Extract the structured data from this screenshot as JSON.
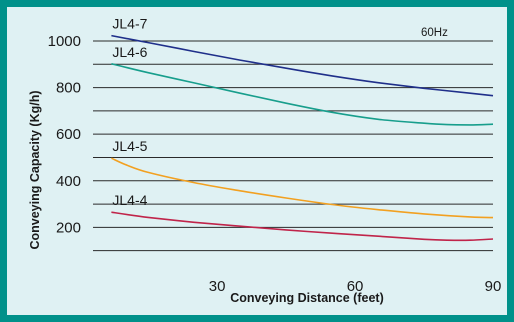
{
  "chart_data": {
    "type": "line",
    "title": "",
    "xlabel": "Conveying Distance (feet)",
    "ylabel": "Conveying Capacity (Kg/h)",
    "annotation": "60Hz",
    "xlim": [
      3,
      90
    ],
    "ylim": [
      60,
      1090
    ],
    "x_ticks": [
      30,
      60,
      90
    ],
    "y_ticks": [
      200,
      400,
      600,
      800,
      1000
    ],
    "grid": "horizontal",
    "colors": {
      "frame": "#00918a",
      "background": "#dff1f3"
    },
    "series": [
      {
        "name": "JL4-7",
        "color": "#1f2f8a",
        "x": [
          7,
          15,
          25,
          35,
          45,
          55,
          65,
          75,
          85,
          90
        ],
        "y": [
          1023,
          993,
          955,
          918,
          883,
          850,
          821,
          797,
          776,
          765
        ]
      },
      {
        "name": "JL4-6",
        "color": "#179e8c",
        "x": [
          7,
          15,
          25,
          35,
          45,
          55,
          65,
          75,
          80,
          85,
          90
        ],
        "y": [
          902,
          864,
          820,
          776,
          733,
          694,
          664,
          647,
          641,
          640,
          643
        ]
      },
      {
        "name": "JL4-5",
        "color": "#f2a020",
        "x": [
          7,
          10,
          15,
          25,
          35,
          45,
          55,
          65,
          75,
          85,
          90
        ],
        "y": [
          497,
          470,
          436,
          392,
          357,
          326,
          298,
          276,
          258,
          245,
          242
        ]
      },
      {
        "name": "JL4-4",
        "color": "#c0244a",
        "x": [
          7,
          15,
          25,
          35,
          45,
          55,
          65,
          75,
          80,
          85,
          90
        ],
        "y": [
          265,
          243,
          222,
          205,
          189,
          175,
          162,
          149,
          145,
          145,
          150
        ]
      }
    ]
  }
}
